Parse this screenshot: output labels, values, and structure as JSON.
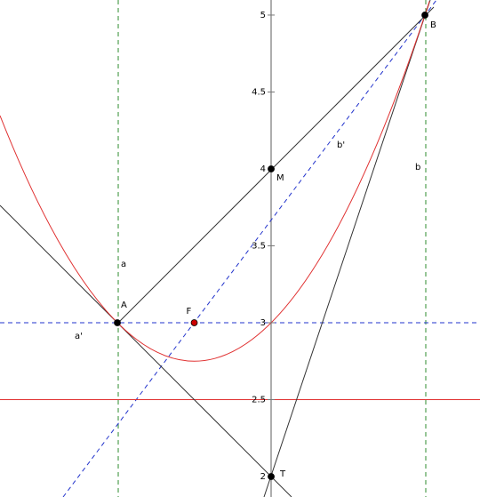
{
  "chart_data": {
    "type": "geometry",
    "xlim": [
      -1.763,
      1.358
    ],
    "ylim": [
      1.867,
      5.098
    ],
    "yticks": [
      2,
      2.5,
      3,
      3.5,
      4,
      4.5,
      5
    ],
    "points": [
      {
        "label": "A",
        "x": -1,
        "y": 3,
        "color": "#000000"
      },
      {
        "label": "F",
        "x": -0.5,
        "y": 3,
        "color": "#cc0000"
      },
      {
        "label": "B",
        "x": 1,
        "y": 5,
        "color": "#000000"
      },
      {
        "label": "M",
        "x": 0,
        "y": 4,
        "color": "#000000"
      },
      {
        "label": "T",
        "x": 0,
        "y": 2,
        "color": "#000000"
      }
    ],
    "line_labels": [
      "a",
      "a'",
      "b",
      "b'"
    ]
  }
}
